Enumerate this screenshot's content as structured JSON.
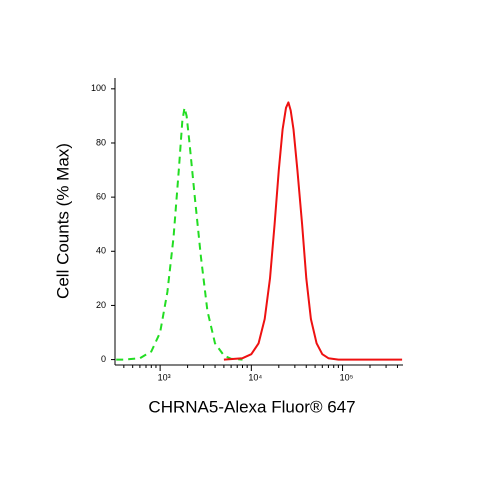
{
  "chart_data": {
    "type": "line",
    "xlabel": "CHRNA5-Alexa Fluor® 647",
    "ylabel": "Cell Counts (% Max)",
    "xscale": "log",
    "xlim": [
      320,
      460000
    ],
    "ylim": [
      -2,
      104
    ],
    "xticks": [
      {
        "value": 1000,
        "label": "10³"
      },
      {
        "value": 10000,
        "label": "10⁴"
      },
      {
        "value": 100000,
        "label": "10⁵"
      }
    ],
    "xminorticks": [
      400,
      500,
      600,
      700,
      800,
      900,
      2000,
      3000,
      4000,
      5000,
      6000,
      7000,
      8000,
      9000,
      20000,
      30000,
      40000,
      50000,
      60000,
      70000,
      80000,
      90000,
      200000,
      300000,
      400000
    ],
    "yticks": [
      0,
      20,
      40,
      60,
      80,
      100
    ],
    "series": [
      {
        "color": "#22dd22",
        "dash": true,
        "x": [
          330,
          400,
          600,
          800,
          1000,
          1200,
          1400,
          1600,
          1750,
          1850,
          1950,
          2100,
          2400,
          2800,
          3300,
          4000,
          5000,
          6000,
          8000
        ],
        "values": [
          0,
          0,
          0.5,
          3,
          10,
          25,
          45,
          70,
          88,
          93,
          90,
          80,
          60,
          38,
          18,
          6,
          1.5,
          0.3,
          0
        ]
      },
      {
        "color": "#ee1111",
        "dash": false,
        "x": [
          5000,
          8000,
          10000,
          12000,
          14000,
          16000,
          18000,
          20000,
          22000,
          24000,
          25500,
          27000,
          29000,
          32000,
          36000,
          40000,
          45000,
          52000,
          60000,
          70000,
          90000,
          200000,
          450000
        ],
        "values": [
          0,
          0.5,
          2,
          6,
          15,
          30,
          50,
          70,
          85,
          93,
          95,
          92,
          85,
          70,
          50,
          30,
          15,
          6,
          2,
          0.5,
          0,
          0,
          0
        ]
      }
    ]
  }
}
